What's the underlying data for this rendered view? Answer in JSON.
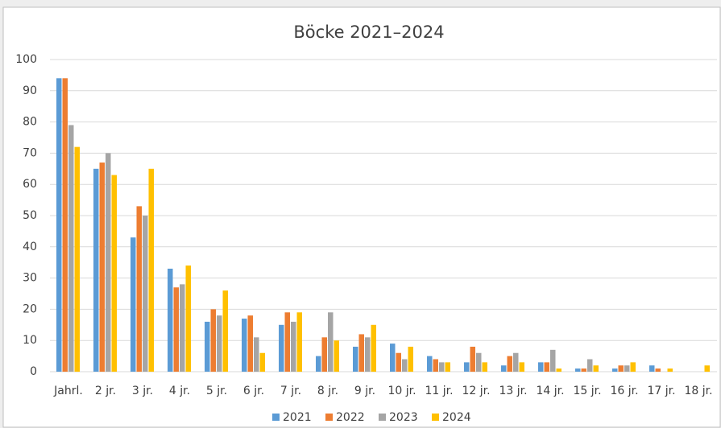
{
  "chart_data": {
    "type": "bar",
    "title": "Böcke 2021–2024",
    "categories": [
      "Jahrl.",
      "2 jr.",
      "3 jr.",
      "4 jr.",
      "5 jr.",
      "6 jr.",
      "7 jr.",
      "8 jr.",
      "9 jr.",
      "10 jr.",
      "11 jr.",
      "12 jr.",
      "13 jr.",
      "14 jr.",
      "15 jr.",
      "16 jr.",
      "17 jr.",
      "18 jr."
    ],
    "series": [
      {
        "name": "2021",
        "color": "#5b9bd5",
        "values": [
          94,
          65,
          43,
          33,
          16,
          17,
          15,
          5,
          8,
          9,
          5,
          3,
          2,
          3,
          1,
          1,
          2,
          0
        ]
      },
      {
        "name": "2022",
        "color": "#ed7d31",
        "values": [
          94,
          67,
          53,
          27,
          20,
          18,
          19,
          11,
          12,
          6,
          4,
          8,
          5,
          3,
          1,
          2,
          1,
          0
        ]
      },
      {
        "name": "2023",
        "color": "#a5a5a5",
        "values": [
          79,
          70,
          50,
          28,
          18,
          11,
          16,
          19,
          11,
          4,
          3,
          6,
          6,
          7,
          4,
          2,
          0,
          0
        ]
      },
      {
        "name": "2024",
        "color": "#ffc000",
        "values": [
          72,
          63,
          65,
          34,
          26,
          6,
          19,
          10,
          15,
          8,
          3,
          3,
          3,
          1,
          2,
          3,
          1,
          2
        ]
      }
    ],
    "ylim": [
      0,
      100
    ],
    "yticks": [
      0,
      10,
      20,
      30,
      40,
      50,
      60,
      70,
      80,
      90,
      100
    ],
    "grid": true,
    "legend": "bottom"
  }
}
